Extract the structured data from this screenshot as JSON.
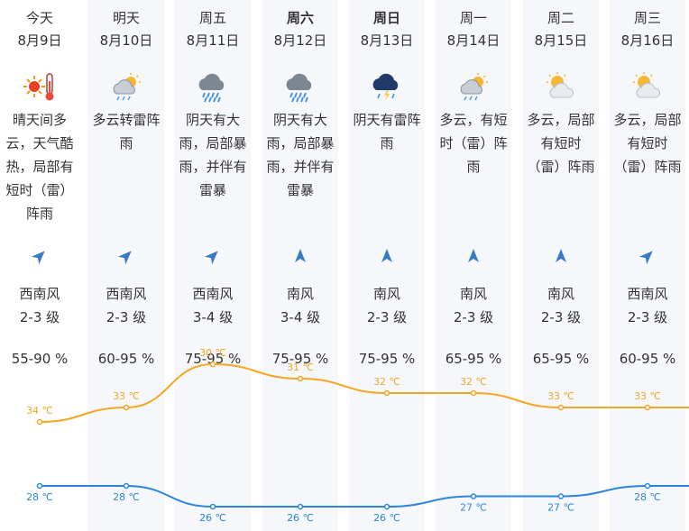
{
  "colors": {
    "high": "#f5a623",
    "low": "#2b86d9",
    "shade": "#f5f7fb",
    "arrow": "#3a7bc8"
  },
  "days": [
    {
      "day": "今天",
      "date": "8月9日",
      "icon": "sun-thermometer-icon",
      "desc": "晴天间多云，天气酷热，局部有短时（雷）阵雨",
      "wind_dir": "西南风",
      "wind_level": "2-3 级",
      "humidity": "55-90 %",
      "high": "34 ℃",
      "low": "28 ℃",
      "bold": false
    },
    {
      "day": "明天",
      "date": "8月10日",
      "icon": "cloud-sun-rain-icon",
      "desc": "多云转雷阵雨",
      "wind_dir": "西南风",
      "wind_level": "2-3 级",
      "humidity": "60-95 %",
      "high": "33 ℃",
      "low": "28 ℃",
      "bold": false
    },
    {
      "day": "周五",
      "date": "8月11日",
      "icon": "heavy-rain-icon",
      "desc": "阴天有大雨，局部暴雨，并伴有雷暴",
      "wind_dir": "西南风",
      "wind_level": "3-4 级",
      "humidity": "75-95 %",
      "high": "30 ℃",
      "low": "26 ℃",
      "bold": false
    },
    {
      "day": "周六",
      "date": "8月12日",
      "icon": "heavy-rain-icon",
      "desc": "阴天有大雨，局部暴雨，并伴有雷暴",
      "wind_dir": "南风",
      "wind_level": "3-4 级",
      "humidity": "75-95 %",
      "high": "31 ℃",
      "low": "26 ℃",
      "bold": true
    },
    {
      "day": "周日",
      "date": "8月13日",
      "icon": "thunder-rain-icon",
      "desc": "阴天有雷阵雨",
      "wind_dir": "南风",
      "wind_level": "2-3 级",
      "humidity": "75-95 %",
      "high": "32 ℃",
      "low": "26 ℃",
      "bold": true
    },
    {
      "day": "周一",
      "date": "8月14日",
      "icon": "cloud-sun-rain-icon",
      "desc": "多云，有短时（雷）阵雨",
      "wind_dir": "南风",
      "wind_level": "2-3 级",
      "humidity": "65-95 %",
      "high": "32 ℃",
      "low": "27 ℃",
      "bold": false
    },
    {
      "day": "周二",
      "date": "8月15日",
      "icon": "partly-cloudy-icon",
      "desc": "多云，局部有短时（雷）阵雨",
      "wind_dir": "南风",
      "wind_level": "2-3 级",
      "humidity": "65-95 %",
      "high": "33 ℃",
      "low": "27 ℃",
      "bold": false
    },
    {
      "day": "周三",
      "date": "8月16日",
      "icon": "partly-cloudy-icon",
      "desc": "多云，局部有短时（雷）阵雨",
      "wind_dir": "西南风",
      "wind_level": "2-3 级",
      "humidity": "60-95 %",
      "high": "33 ℃",
      "low": "28 ℃",
      "bold": false
    }
  ],
  "chart_data": {
    "type": "line",
    "categories": [
      "8月9日",
      "8月10日",
      "8月11日",
      "8月12日",
      "8月13日",
      "8月14日",
      "8月15日",
      "8月16日"
    ],
    "series": [
      {
        "values": [
          34,
          33,
          30,
          31,
          32,
          32,
          33,
          33
        ]
      },
      {
        "values": [
          28,
          28,
          26,
          26,
          26,
          27,
          27,
          28
        ]
      }
    ],
    "unit": "℃"
  }
}
